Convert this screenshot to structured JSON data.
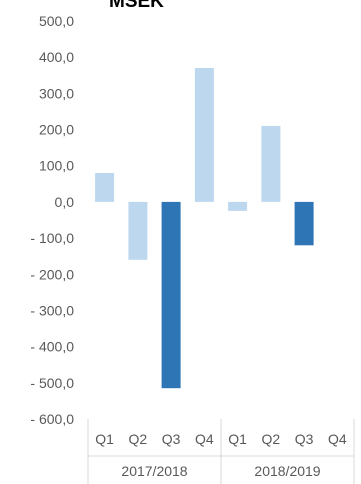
{
  "chart_data": {
    "type": "bar",
    "title": "MSEK",
    "xlabel": "",
    "ylabel": "",
    "ylim": [
      -600,
      500
    ],
    "yticks": [
      500,
      400,
      300,
      200,
      100,
      0,
      -100,
      -200,
      -300,
      -400,
      -500,
      -600
    ],
    "ytick_labels": [
      "500,0",
      "400,0",
      "300,0",
      "200,0",
      "100,0",
      "0,0",
      "- 100,0",
      "- 200,0",
      "- 300,0",
      "- 400,0",
      "- 500,0",
      "- 600,0"
    ],
    "grid": false,
    "legend": "none",
    "categories": [
      "Q1",
      "Q2",
      "Q3",
      "Q4",
      "Q1",
      "Q2",
      "Q3",
      "Q4"
    ],
    "groups": [
      {
        "label": "2017/2018",
        "categories": [
          "Q1",
          "Q2",
          "Q3",
          "Q4"
        ]
      },
      {
        "label": "2018/2019",
        "categories": [
          "Q1",
          "Q2",
          "Q3",
          "Q4"
        ]
      }
    ],
    "values": [
      80,
      -160,
      -515,
      370,
      -25,
      210,
      -120,
      null
    ],
    "highlighted": [
      false,
      false,
      true,
      false,
      false,
      false,
      true,
      false
    ],
    "colors": {
      "normal": "#bdd7ee",
      "highlight": "#2e75b6",
      "axis": "#d9d9d9",
      "text": "#595959"
    }
  }
}
